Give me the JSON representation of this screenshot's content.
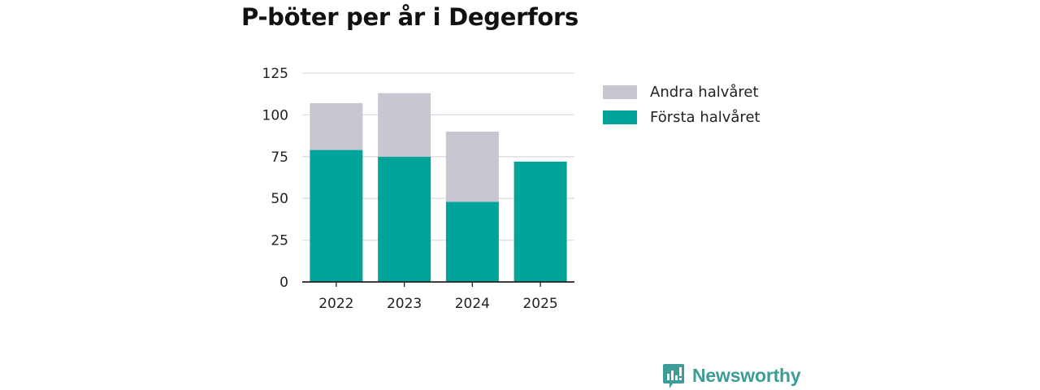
{
  "chart_data": {
    "type": "bar",
    "stacked": true,
    "title": "P-böter per år i Degerfors",
    "categories": [
      "2022",
      "2023",
      "2024",
      "2025"
    ],
    "series": [
      {
        "name": "Första halvåret",
        "values": [
          79,
          75,
          48,
          72
        ],
        "color": "#00a49a"
      },
      {
        "name": "Andra halvåret",
        "values": [
          28,
          38,
          42,
          null
        ],
        "color": "#c8c7d1"
      }
    ],
    "yticks": [
      "0",
      "25",
      "50",
      "75",
      "100",
      "125"
    ],
    "ylim": [
      0,
      125
    ],
    "grid": true,
    "legend_placement": "right"
  },
  "legend": {
    "items": [
      {
        "label": "Andra halvåret",
        "color": "#c8c7d1"
      },
      {
        "label": "Första halvåret",
        "color": "#00a49a"
      }
    ]
  },
  "branding": {
    "logo_text": "Newsworthy",
    "logo_color": "#3d9c95"
  }
}
